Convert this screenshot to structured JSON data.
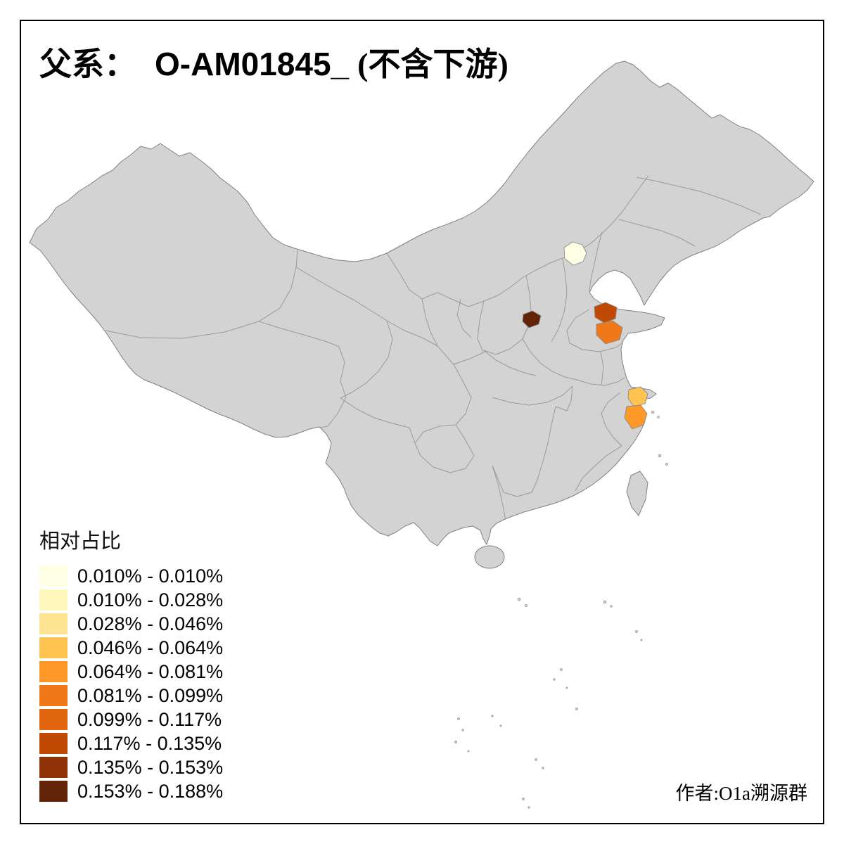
{
  "title": {
    "prefix": "父系：",
    "haplogroup": "O-AM01845_",
    "suffix": "(不含下游)"
  },
  "legend": {
    "title": "相对占比",
    "classes": [
      {
        "label": "0.010% - 0.010%",
        "color": "#FFFFE5"
      },
      {
        "label": "0.010% - 0.028%",
        "color": "#FFF7BC"
      },
      {
        "label": "0.028% - 0.046%",
        "color": "#FEE391"
      },
      {
        "label": "0.046% - 0.064%",
        "color": "#FEC44F"
      },
      {
        "label": "0.064% - 0.081%",
        "color": "#FE9929"
      },
      {
        "label": "0.081% - 0.099%",
        "color": "#F07818"
      },
      {
        "label": "0.099% - 0.117%",
        "color": "#E1640E"
      },
      {
        "label": "0.117% - 0.135%",
        "color": "#C04A02"
      },
      {
        "label": "0.135% - 0.153%",
        "color": "#8E3104"
      },
      {
        "label": "0.153% - 0.188%",
        "color": "#622306"
      }
    ]
  },
  "credit": "作者:O1a溯源群",
  "map": {
    "base_fill": "#D3D3D3",
    "province_border_color": "#9A9A9A",
    "outline_color": "#808080",
    "sea_color": "#FFFFFF",
    "highlighted_regions": [
      {
        "name": "beijing-area",
        "bin": "0.010% - 0.010%",
        "color": "#FFFFE5"
      },
      {
        "name": "southwest-shanxi-area",
        "bin": "0.153% - 0.188%",
        "color": "#622306"
      },
      {
        "name": "north-shandong-area",
        "bin": "0.117% - 0.135%",
        "color": "#C04A02"
      },
      {
        "name": "southeast-shandong-area",
        "bin": "0.081% - 0.099%",
        "color": "#F07818"
      },
      {
        "name": "northeast-zhejiang-area",
        "bin": "0.046% - 0.064%",
        "color": "#FEC44F"
      },
      {
        "name": "east-zhejiang-area",
        "bin": "0.064% - 0.081%",
        "color": "#FE9929"
      }
    ]
  }
}
